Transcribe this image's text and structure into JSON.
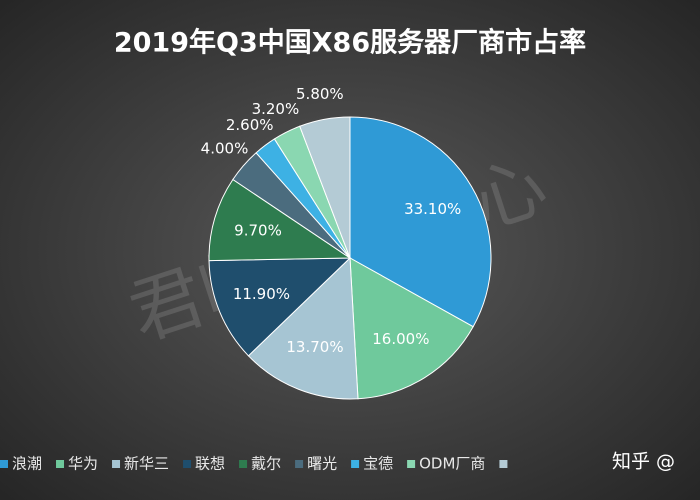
{
  "chart_data": {
    "type": "pie",
    "title": "2019年Q3中国X86服务器厂商市占率",
    "categories": [
      "浪潮",
      "华为",
      "新华三",
      "联想",
      "戴尔",
      "曙光",
      "宝德",
      "ODM厂商",
      null
    ],
    "values": [
      33.1,
      16.0,
      13.7,
      11.9,
      9.7,
      4.0,
      2.6,
      3.2,
      5.8
    ],
    "value_labels": [
      "33.10%",
      "16.00%",
      "13.70%",
      "11.90%",
      "9.70%",
      "4.00%",
      "2.60%",
      "3.20%",
      "5.80%"
    ],
    "colors": [
      "#2f9ad6",
      "#6fc99c",
      "#a6c5d3",
      "#1f4e6d",
      "#2e7c4f",
      "#4b6c7e",
      "#3db1e4",
      "#8ad7b1",
      "#b4cbd5"
    ],
    "legend": "bottom",
    "watermarks": [
      "君临研究中心",
      "知乎 @"
    ]
  }
}
